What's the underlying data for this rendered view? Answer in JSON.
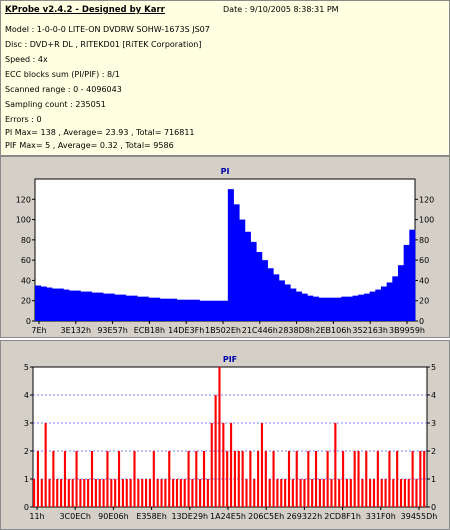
{
  "info": {
    "title": "KProbe v2.4.2 - Designed by Karr",
    "date": "Date : 9/10/2005 8:38:31 PM",
    "lines": [
      "Model : 1-0-0-0 LITE-ON DVDRW SOHW-1673S JS07",
      "Disc : DVD+R DL , RITEKD01 [RiTEK Corporation]",
      "Speed : 4x",
      "ECC blocks sum (PI/PIF) : 8/1",
      "Scanned range : 0 - 4096043",
      "Sampling count : 235051",
      "Errors : 0",
      "PI Max= 138 , Average= 23.93 , Total= 716811",
      "PIF Max= 5 , Average= 0.32 , Total= 9586"
    ]
  },
  "colors": {
    "info_bg": "#ffffe1",
    "panel_bg": "#d4d0c8",
    "plot_bg": "#ffffff",
    "pi_series": "#0000ff",
    "pif_series": "#ff0000",
    "title": "#0000aa"
  },
  "chart_data": [
    {
      "type": "area",
      "title": "PI",
      "xlabel": "",
      "ylabel": "",
      "ylim": [
        0,
        140
      ],
      "yticks": [
        0,
        20,
        40,
        60,
        80,
        100,
        120
      ],
      "xticks": [
        "7Eh",
        "3E132h",
        "93E57h",
        "ECB18h",
        "14DE3Fh",
        "1B502Eh",
        "21C446h",
        "2838D8h",
        "2EB106h",
        "352163h",
        "3B9959h"
      ],
      "grid": false,
      "series": [
        {
          "values": [
            35,
            34,
            33,
            32,
            32,
            31,
            30,
            30,
            29,
            29,
            28,
            28,
            27,
            27,
            26,
            26,
            25,
            25,
            24,
            24,
            23,
            23,
            22,
            22,
            22,
            21,
            21,
            21,
            21,
            20,
            20,
            20,
            20,
            20,
            130,
            115,
            100,
            88,
            78,
            68,
            60,
            52,
            46,
            40,
            36,
            32,
            29,
            27,
            25,
            24,
            23,
            23,
            23,
            23,
            24,
            24,
            25,
            26,
            27,
            29,
            31,
            34,
            38,
            44,
            55,
            75,
            90
          ]
        }
      ]
    },
    {
      "type": "bar",
      "title": "PIF",
      "xlabel": "",
      "ylabel": "",
      "ylim": [
        0,
        5
      ],
      "yticks": [
        0,
        1,
        2,
        3,
        4,
        5
      ],
      "xticks": [
        "11h",
        "3C0ECh",
        "90E06h",
        "E358Eh",
        "13DE29h",
        "1A24E5h",
        "206C5Eh",
        "269322h",
        "2CD8F1h",
        "331F0h",
        "39455Dh"
      ],
      "grid": true,
      "series": [
        {
          "values": [
            1,
            2,
            1,
            3,
            1,
            2,
            1,
            1,
            2,
            1,
            1,
            2,
            1,
            1,
            1,
            2,
            1,
            1,
            1,
            2,
            1,
            1,
            2,
            1,
            1,
            1,
            2,
            1,
            1,
            1,
            1,
            2,
            1,
            1,
            1,
            2,
            1,
            1,
            1,
            1,
            2,
            1,
            2,
            1,
            2,
            1,
            3,
            4,
            5,
            3,
            2,
            3,
            2,
            2,
            2,
            1,
            2,
            1,
            2,
            3,
            2,
            1,
            2,
            1,
            1,
            1,
            2,
            1,
            2,
            1,
            1,
            2,
            1,
            2,
            1,
            1,
            2,
            1,
            3,
            1,
            2,
            1,
            1,
            2,
            2,
            1,
            2,
            1,
            1,
            2,
            1,
            1,
            2,
            1,
            2,
            1,
            1,
            1,
            2,
            1,
            2,
            2
          ]
        }
      ]
    }
  ]
}
